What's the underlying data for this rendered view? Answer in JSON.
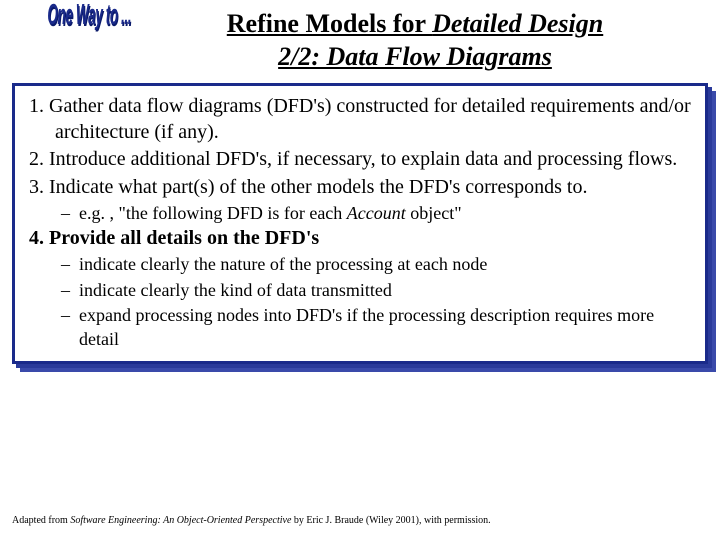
{
  "wordart": {
    "text": "One Way to ..."
  },
  "title": {
    "line1_plain": "Refine Models for ",
    "line1_italic": "Detailed Design",
    "line2_italic": "2/2: Data Flow Diagrams"
  },
  "items": {
    "i1": "1.  Gather data flow diagrams (DFD's) constructed for detailed requirements and/or architecture (if any).",
    "i2": "2.  Introduce additional DFD's, if necessary, to explain data and processing flows.",
    "i3": "3.  Indicate what part(s) of the other models the DFD's corresponds to.",
    "i4": "4.  Provide all details on the DFD's"
  },
  "subs": {
    "s3a_pre": "e.g. , \"the following DFD is for each ",
    "s3a_em": "Account",
    "s3a_post": " object\"",
    "s4a": "indicate clearly the nature of the processing at each node",
    "s4b": "indicate clearly the kind of data transmitted",
    "s4c": "expand processing nodes into DFD's if the processing description requires more detail"
  },
  "footer": {
    "pre": "Adapted from ",
    "book": "Software Engineering: An Object-Oriented Perspective",
    "post": " by Eric J. Braude (Wiley 2001), with permission."
  },
  "colors": {
    "border": "#1a2a8a",
    "wordart": "#1a2a8a",
    "background": "#ffffff",
    "text": "#000000"
  },
  "typography": {
    "title_fontsize": 26,
    "body_fontsize": 20,
    "sub_fontsize": 18,
    "footer_fontsize": 10,
    "font_family": "Times New Roman"
  }
}
